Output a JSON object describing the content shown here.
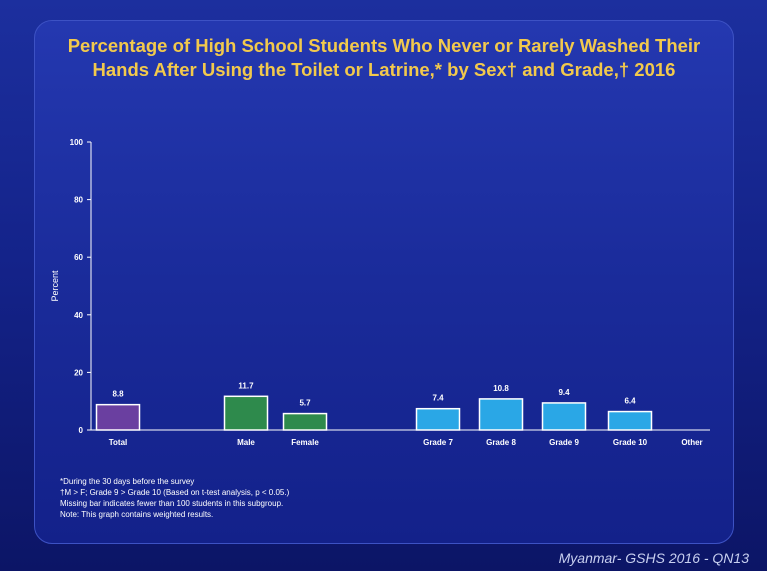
{
  "title_lines": [
    "Percentage of High School Students Who Never or Rarely Washed Their",
    "Hands After Using the Toilet or Latrine,* by Sex† and Grade,† 2016"
  ],
  "notes": [
    "*During the 30 days before the survey",
    "†M > F; Grade 9 > Grade 10 (Based on t-test analysis, p < 0.05.)",
    "Missing bar indicates fewer than 100 students in this subgroup.",
    "Note: This graph contains weighted results."
  ],
  "footer": "Myanmar- GSHS 2016 - QN13",
  "colors": {
    "total": "#6a3fa0",
    "sex": "#2e8a4c",
    "grade": "#2aa7e6",
    "bar_border": "#ffffff",
    "title": "#f2c94c"
  },
  "chart_data": {
    "type": "bar",
    "title": "Percentage of High School Students Who Never or Rarely Washed Their Hands After Using the Toilet or Latrine,* by Sex† and Grade,† 2016",
    "xlabel": "",
    "ylabel": "Percent",
    "ylim": [
      0,
      100
    ],
    "yticks": [
      0,
      20,
      40,
      60,
      80,
      100
    ],
    "categories": [
      "Total",
      "Male",
      "Female",
      "Grade 7",
      "Grade 8",
      "Grade 9",
      "Grade 10",
      "Other"
    ],
    "values": [
      8.8,
      11.7,
      5.7,
      7.4,
      10.8,
      9.4,
      6.4,
      null
    ],
    "value_labels": [
      "8.8",
      "11.7",
      "5.7",
      "7.4",
      "10.8",
      "9.4",
      "6.4",
      ""
    ],
    "groups": [
      "total",
      "sex",
      "sex",
      "grade",
      "grade",
      "grade",
      "grade",
      "grade"
    ],
    "grid": false,
    "legend": "none"
  }
}
